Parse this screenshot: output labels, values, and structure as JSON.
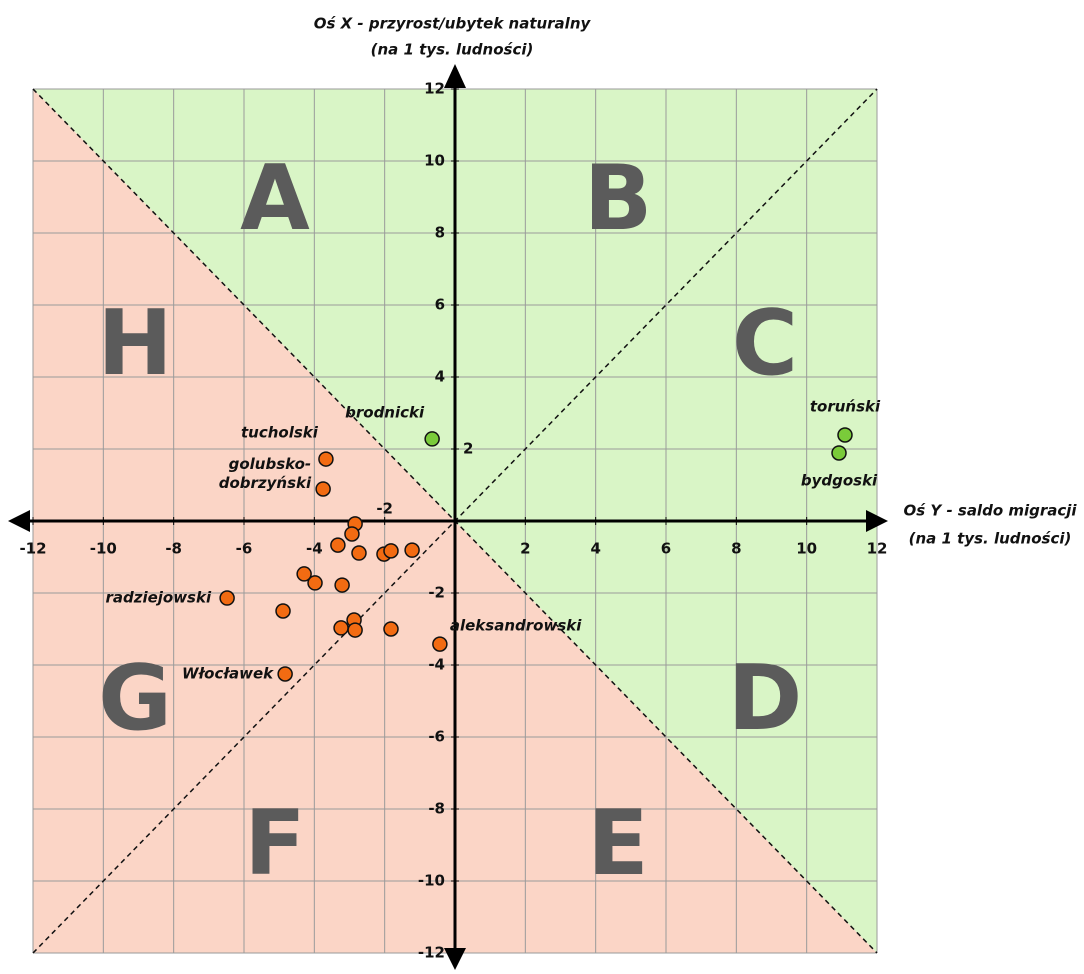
{
  "chart_data": {
    "type": "scatter",
    "x_axis_label": [
      "Oś Y - saldo migracji",
      "(na 1 tys. ludności)"
    ],
    "y_axis_label": [
      "Oś X - przyrost/ubytek naturalny",
      "(na 1 tys. ludności)"
    ],
    "xlim": [
      -12,
      12
    ],
    "ylim": [
      -12,
      12
    ],
    "xticks": [
      -12,
      -10,
      -8,
      -6,
      -4,
      -2,
      2,
      4,
      6,
      8,
      10,
      12
    ],
    "yticks": [
      12,
      10,
      8,
      6,
      4,
      2,
      -2,
      -4,
      -6,
      -8,
      -10,
      -12
    ],
    "grid": true,
    "region_labels": [
      "A",
      "B",
      "C",
      "D",
      "E",
      "F",
      "G",
      "H"
    ],
    "series": [
      {
        "color": "#7acb3a",
        "x": [
          -0.65,
          11.09,
          10.92
        ],
        "values": [
          2.28,
          2.39,
          1.89
        ],
        "labels": [
          "brodnicki",
          "toruński",
          "bydgoski"
        ]
      },
      {
        "color": "#f26b12",
        "x": [
          -3.67,
          -3.75,
          -2.84,
          -2.93,
          -3.33,
          -2.73,
          -2.02,
          -1.82,
          -1.22,
          -4.29,
          -3.98,
          -3.21,
          -6.48,
          -4.89,
          -2.87,
          -3.24,
          -2.84,
          -1.82,
          -0.43,
          -4.83
        ],
        "values": [
          1.72,
          0.89,
          -0.08,
          -0.36,
          -0.67,
          -0.89,
          -0.92,
          -0.83,
          -0.81,
          -1.47,
          -1.72,
          -1.78,
          -2.14,
          -2.5,
          -2.75,
          -2.97,
          -3.03,
          -3.0,
          -3.42,
          -4.25
        ],
        "labels": [
          "tucholski",
          "golubsko-\ndobrzyński",
          null,
          null,
          null,
          null,
          null,
          null,
          null,
          null,
          null,
          null,
          "radziejowski",
          null,
          null,
          null,
          null,
          null,
          "aleksandrowski",
          "Włocławek"
        ]
      }
    ]
  }
}
